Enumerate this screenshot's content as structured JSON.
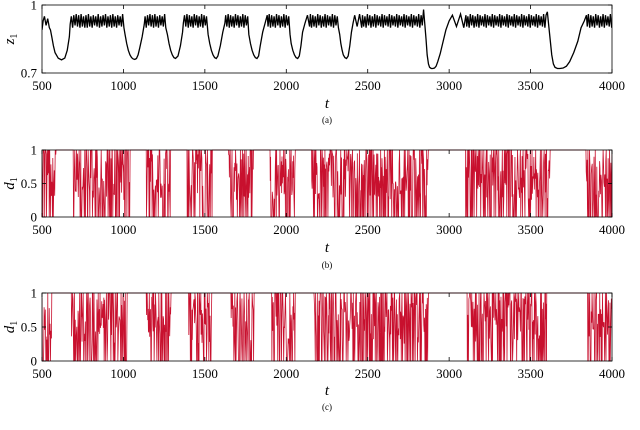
{
  "chart_data": [
    {
      "type": "line",
      "title": "",
      "caption": "(a)",
      "xlabel": "t",
      "ylabel": "z",
      "ylabel_subscript": "1",
      "xlim": [
        500,
        4000
      ],
      "ylim": [
        0.7,
        1.0
      ],
      "xticks": [
        500,
        1000,
        1500,
        2000,
        2500,
        3000,
        3500,
        4000
      ],
      "yticks": [
        0.7,
        1
      ],
      "ytick_labels": [
        "0.7",
        "1"
      ],
      "grid": false,
      "colors": {
        "line": "#000000"
      },
      "series": [
        {
          "x": [
            500,
            507,
            515,
            525,
            535,
            545,
            552,
            560,
            570,
            580,
            600,
            620,
            640,
            655,
            668,
            673,
            680,
            688,
            695,
            703,
            710,
            718,
            725,
            733,
            740,
            748,
            755,
            763,
            770,
            778,
            785,
            793,
            800,
            808,
            815,
            823,
            830,
            838,
            845,
            853,
            860,
            868,
            875,
            883,
            890,
            898,
            905,
            913,
            920,
            928,
            935,
            943,
            950,
            958,
            965,
            973,
            980,
            988,
            995,
            1003,
            1010,
            1020,
            1030,
            1040,
            1050,
            1060,
            1070,
            1080,
            1090,
            1100,
            1115,
            1128,
            1133,
            1140,
            1148,
            1155,
            1163,
            1170,
            1178,
            1185,
            1193,
            1200,
            1208,
            1215,
            1223,
            1230,
            1238,
            1245,
            1253,
            1260,
            1270,
            1280,
            1290,
            1300,
            1310,
            1320,
            1335,
            1350,
            1363,
            1368,
            1375,
            1383,
            1390,
            1398,
            1405,
            1413,
            1420,
            1428,
            1435,
            1443,
            1450,
            1458,
            1465,
            1473,
            1480,
            1488,
            1495,
            1503,
            1510,
            1520,
            1530,
            1540,
            1550,
            1560,
            1570,
            1580,
            1595,
            1610,
            1623,
            1628,
            1635,
            1643,
            1650,
            1658,
            1665,
            1673,
            1680,
            1688,
            1695,
            1703,
            1710,
            1718,
            1725,
            1733,
            1740,
            1748,
            1755,
            1763,
            1770,
            1780,
            1790,
            1800,
            1810,
            1820,
            1830,
            1840,
            1855,
            1870,
            1883,
            1888,
            1895,
            1903,
            1910,
            1918,
            1925,
            1933,
            1940,
            1948,
            1955,
            1963,
            1970,
            1978,
            1985,
            1993,
            2000,
            2008,
            2015,
            2023,
            2030,
            2040,
            2050,
            2060,
            2070,
            2080,
            2090,
            2100,
            2115,
            2130,
            2143,
            2148,
            2155,
            2163,
            2170,
            2178,
            2185,
            2193,
            2200,
            2208,
            2215,
            2223,
            2230,
            2238,
            2245,
            2253,
            2260,
            2268,
            2275,
            2283,
            2290,
            2298,
            2305,
            2313,
            2320,
            2328,
            2335,
            2343,
            2350,
            2360,
            2370,
            2380,
            2390,
            2400,
            2410,
            2420,
            2435,
            2450,
            2463,
            2468,
            2475,
            2483,
            2490,
            2498,
            2505,
            2513,
            2520,
            2528,
            2535,
            2543,
            2550,
            2558,
            2565,
            2573,
            2580,
            2588,
            2595,
            2603,
            2610,
            2618,
            2625,
            2633,
            2640,
            2648,
            2655,
            2663,
            2670,
            2678,
            2685,
            2693,
            2700,
            2708,
            2715,
            2723,
            2730,
            2738,
            2745,
            2753,
            2760,
            2768,
            2775,
            2783,
            2790,
            2798,
            2805,
            2813,
            2820,
            2828,
            2835,
            2843,
            2850,
            2858,
            2865,
            2873,
            2880,
            2890,
            2900,
            2910,
            2920,
            2930,
            2945,
            2960,
            2980,
            3000,
            3020,
            3045,
            3070,
            3090,
            3103,
            3108,
            3115,
            3123,
            3130,
            3138,
            3145,
            3153,
            3160,
            3168,
            3175,
            3183,
            3190,
            3198,
            3205,
            3213,
            3220,
            3228,
            3235,
            3243,
            3250,
            3258,
            3265,
            3273,
            3280,
            3288,
            3295,
            3303,
            3310,
            3318,
            3325,
            3333,
            3340,
            3348,
            3355,
            3363,
            3370,
            3378,
            3385,
            3393,
            3400,
            3408,
            3415,
            3423,
            3430,
            3438,
            3445,
            3453,
            3460,
            3468,
            3475,
            3483,
            3490,
            3498,
            3505,
            3513,
            3520,
            3528,
            3535,
            3543,
            3550,
            3558,
            3565,
            3573,
            3580,
            3588,
            3595,
            3603,
            3610,
            3620,
            3630,
            3640,
            3650,
            3665,
            3680,
            3700,
            3720,
            3740,
            3765,
            3790,
            3810,
            3830,
            3843,
            3848,
            3855,
            3863,
            3870,
            3878,
            3885,
            3893,
            3900,
            3908,
            3915,
            3923,
            3930,
            3938,
            3945,
            3953,
            3960,
            3968,
            3975,
            3983,
            3990,
            3998,
            4000
          ],
          "y": [
            0.89,
            0.93,
            0.95,
            0.91,
            0.94,
            0.9,
            0.89,
            0.86,
            0.82,
            0.79,
            0.765,
            0.758,
            0.766,
            0.8,
            0.86,
            0.915,
            0.95,
            0.9,
            0.955,
            0.91,
            0.96,
            0.905,
            0.955,
            0.9,
            0.96,
            0.905,
            0.95,
            0.9,
            0.955,
            0.9,
            0.96,
            0.905,
            0.95,
            0.9,
            0.955,
            0.91,
            0.95,
            0.905,
            0.96,
            0.9,
            0.95,
            0.905,
            0.955,
            0.91,
            0.96,
            0.9,
            0.95,
            0.905,
            0.955,
            0.9,
            0.96,
            0.905,
            0.95,
            0.9,
            0.955,
            0.91,
            0.95,
            0.905,
            0.96,
            0.9,
            0.87,
            0.83,
            0.8,
            0.78,
            0.768,
            0.762,
            0.76,
            0.764,
            0.78,
            0.81,
            0.86,
            0.915,
            0.95,
            0.9,
            0.955,
            0.91,
            0.96,
            0.905,
            0.955,
            0.9,
            0.96,
            0.905,
            0.95,
            0.9,
            0.955,
            0.91,
            0.95,
            0.905,
            0.96,
            0.9,
            0.87,
            0.83,
            0.8,
            0.78,
            0.768,
            0.764,
            0.775,
            0.82,
            0.88,
            0.92,
            0.955,
            0.905,
            0.96,
            0.9,
            0.955,
            0.905,
            0.95,
            0.9,
            0.96,
            0.91,
            0.955,
            0.9,
            0.95,
            0.905,
            0.96,
            0.9,
            0.955,
            0.91,
            0.95,
            0.87,
            0.83,
            0.8,
            0.78,
            0.768,
            0.764,
            0.775,
            0.82,
            0.88,
            0.92,
            0.955,
            0.905,
            0.96,
            0.9,
            0.955,
            0.905,
            0.95,
            0.9,
            0.96,
            0.91,
            0.955,
            0.9,
            0.95,
            0.905,
            0.96,
            0.9,
            0.955,
            0.91,
            0.95,
            0.87,
            0.83,
            0.8,
            0.78,
            0.768,
            0.764,
            0.775,
            0.82,
            0.88,
            0.92,
            0.955,
            0.905,
            0.96,
            0.9,
            0.955,
            0.905,
            0.95,
            0.9,
            0.96,
            0.91,
            0.955,
            0.9,
            0.95,
            0.905,
            0.96,
            0.9,
            0.955,
            0.91,
            0.95,
            0.87,
            0.83,
            0.8,
            0.78,
            0.768,
            0.764,
            0.775,
            0.82,
            0.88,
            0.92,
            0.955,
            0.905,
            0.96,
            0.9,
            0.955,
            0.905,
            0.95,
            0.9,
            0.96,
            0.91,
            0.955,
            0.9,
            0.95,
            0.905,
            0.96,
            0.9,
            0.955,
            0.91,
            0.95,
            0.905,
            0.96,
            0.9,
            0.955,
            0.91,
            0.95,
            0.9,
            0.87,
            0.83,
            0.8,
            0.78,
            0.768,
            0.764,
            0.775,
            0.82,
            0.88,
            0.92,
            0.955,
            0.905,
            0.96,
            0.9,
            0.955,
            0.905,
            0.95,
            0.9,
            0.96,
            0.91,
            0.955,
            0.9,
            0.95,
            0.905,
            0.96,
            0.9,
            0.955,
            0.91,
            0.95,
            0.905,
            0.96,
            0.9,
            0.955,
            0.91,
            0.95,
            0.905,
            0.96,
            0.9,
            0.955,
            0.91,
            0.95,
            0.905,
            0.96,
            0.9,
            0.955,
            0.91,
            0.95,
            0.905,
            0.96,
            0.9,
            0.955,
            0.91,
            0.95,
            0.905,
            0.96,
            0.9,
            0.955,
            0.91,
            0.95,
            0.905,
            0.96,
            0.9,
            0.955,
            0.91,
            0.98,
            0.92,
            0.85,
            0.78,
            0.74,
            0.725,
            0.72,
            0.72,
            0.722,
            0.73,
            0.75,
            0.785,
            0.83,
            0.89,
            0.93,
            0.955,
            0.905,
            0.96,
            0.9,
            0.955,
            0.905,
            0.95,
            0.9,
            0.96,
            0.91,
            0.955,
            0.9,
            0.95,
            0.905,
            0.96,
            0.9,
            0.955,
            0.91,
            0.95,
            0.905,
            0.96,
            0.9,
            0.955,
            0.91,
            0.95,
            0.905,
            0.96,
            0.9,
            0.955,
            0.91,
            0.95,
            0.905,
            0.96,
            0.9,
            0.955,
            0.91,
            0.95,
            0.905,
            0.96,
            0.9,
            0.955,
            0.91,
            0.95,
            0.905,
            0.96,
            0.9,
            0.955,
            0.91,
            0.95,
            0.905,
            0.96,
            0.9,
            0.955,
            0.91,
            0.95,
            0.905,
            0.96,
            0.9,
            0.955,
            0.91,
            0.95,
            0.905,
            0.96,
            0.9,
            0.955,
            0.91,
            0.95,
            0.905,
            0.96,
            0.9,
            0.955,
            0.97,
            0.92,
            0.85,
            0.78,
            0.74,
            0.725,
            0.72,
            0.72,
            0.722,
            0.73,
            0.75,
            0.79,
            0.84,
            0.9,
            0.93,
            0.955,
            0.905,
            0.96,
            0.9,
            0.955,
            0.905,
            0.95,
            0.9,
            0.96,
            0.91,
            0.955,
            0.9,
            0.95,
            0.905,
            0.96,
            0.9,
            0.955,
            0.91,
            0.95,
            0.905,
            0.96,
            0.9,
            0.92
          ]
        }
      ]
    },
    {
      "type": "line",
      "title": "",
      "caption": "(b)",
      "xlabel": "t",
      "ylabel": "d",
      "ylabel_subscript": "1",
      "xlim": [
        500,
        4000
      ],
      "ylim": [
        0,
        1
      ],
      "xticks": [
        500,
        1000,
        1500,
        2000,
        2500,
        3000,
        3500,
        4000
      ],
      "yticks": [
        0,
        0.5,
        1
      ],
      "ytick_labels": [
        "0",
        "0.5",
        "1"
      ],
      "grid": false,
      "colors": {
        "line": "#c8102e"
      },
      "plateaus": [
        [
          590,
          690
        ],
        [
          1040,
          1140
        ],
        [
          1290,
          1390
        ],
        [
          1545,
          1645
        ],
        [
          1800,
          1900
        ],
        [
          2055,
          2155
        ],
        [
          2870,
          3100
        ],
        [
          3620,
          3840
        ]
      ]
    },
    {
      "type": "line",
      "title": "",
      "caption": "(c)",
      "xlabel": "t",
      "ylabel": "d",
      "ylabel_subscript": "1",
      "xlim": [
        500,
        4000
      ],
      "ylim": [
        0,
        1
      ],
      "xticks": [
        500,
        1000,
        1500,
        2000,
        2500,
        3000,
        3500,
        4000
      ],
      "yticks": [
        0,
        0.5,
        1
      ],
      "ytick_labels": [
        "0",
        "0.5",
        "1"
      ],
      "grid": false,
      "colors": {
        "line": "#c8102e"
      },
      "plateaus": [
        [
          560,
          680
        ],
        [
          1020,
          1140
        ],
        [
          1290,
          1400
        ],
        [
          1545,
          1660
        ],
        [
          1800,
          1910
        ],
        [
          2055,
          2170
        ],
        [
          2870,
          3110
        ],
        [
          3600,
          3850
        ]
      ]
    }
  ]
}
